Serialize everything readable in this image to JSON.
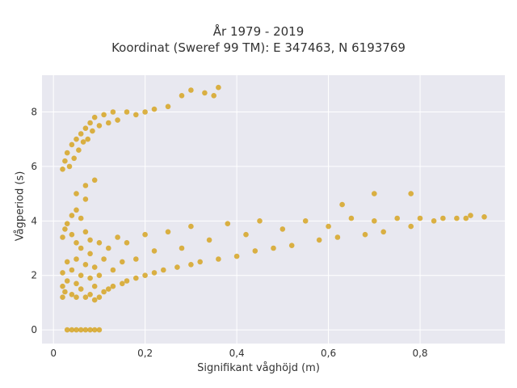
{
  "chart_data": {
    "type": "scatter",
    "title": "År 1979 - 2019",
    "subtitle": "Koordinat (Sweref 99 TM): E 347463, N 6193769",
    "xlabel": "Signifikant våghöjd (m)",
    "ylabel": "Vågperiod (s)",
    "xlim": [
      -0.025,
      0.985
    ],
    "ylim": [
      -0.5,
      9.35
    ],
    "x_ticks": [
      0,
      0.2,
      0.4,
      0.6,
      0.8
    ],
    "x_tick_labels": [
      "0",
      "0,2",
      "0,4",
      "0,6",
      "0,8"
    ],
    "y_ticks": [
      0,
      2,
      4,
      6,
      8
    ],
    "y_tick_labels": [
      "0",
      "2",
      "4",
      "6",
      "8"
    ],
    "grid": true,
    "plot_background": "#e8e8f0",
    "marker_color": "#d4a017",
    "series": [
      {
        "points": [
          [
            0.03,
            0
          ],
          [
            0.04,
            0
          ],
          [
            0.05,
            0
          ],
          [
            0.06,
            0
          ],
          [
            0.07,
            0
          ],
          [
            0.08,
            0
          ],
          [
            0.09,
            0
          ],
          [
            0.1,
            0
          ],
          [
            0.02,
            1.2
          ],
          [
            0.02,
            1.6
          ],
          [
            0.02,
            2.1
          ],
          [
            0.025,
            1.4
          ],
          [
            0.03,
            1.8
          ],
          [
            0.03,
            2.5
          ],
          [
            0.04,
            1.3
          ],
          [
            0.04,
            2.2
          ],
          [
            0.05,
            1.2
          ],
          [
            0.05,
            1.7
          ],
          [
            0.05,
            2.6
          ],
          [
            0.06,
            1.5
          ],
          [
            0.06,
            2.0
          ],
          [
            0.06,
            3.0
          ],
          [
            0.07,
            1.2
          ],
          [
            0.07,
            2.4
          ],
          [
            0.08,
            1.3
          ],
          [
            0.08,
            1.9
          ],
          [
            0.08,
            2.8
          ],
          [
            0.09,
            1.1
          ],
          [
            0.09,
            1.6
          ],
          [
            0.09,
            2.3
          ],
          [
            0.1,
            1.2
          ],
          [
            0.1,
            3.2
          ],
          [
            0.1,
            2.0
          ],
          [
            0.11,
            1.4
          ],
          [
            0.11,
            2.6
          ],
          [
            0.12,
            1.5
          ],
          [
            0.12,
            3.0
          ],
          [
            0.13,
            1.6
          ],
          [
            0.13,
            2.2
          ],
          [
            0.14,
            3.4
          ],
          [
            0.15,
            1.7
          ],
          [
            0.15,
            2.5
          ],
          [
            0.16,
            1.8
          ],
          [
            0.16,
            3.2
          ],
          [
            0.18,
            1.9
          ],
          [
            0.18,
            2.6
          ],
          [
            0.2,
            2.0
          ],
          [
            0.2,
            3.5
          ],
          [
            0.22,
            2.1
          ],
          [
            0.22,
            2.9
          ],
          [
            0.24,
            2.2
          ],
          [
            0.25,
            3.6
          ],
          [
            0.27,
            2.3
          ],
          [
            0.28,
            3.0
          ],
          [
            0.3,
            2.4
          ],
          [
            0.3,
            3.8
          ],
          [
            0.32,
            2.5
          ],
          [
            0.34,
            3.3
          ],
          [
            0.36,
            2.6
          ],
          [
            0.38,
            3.9
          ],
          [
            0.4,
            2.7
          ],
          [
            0.42,
            3.5
          ],
          [
            0.44,
            2.9
          ],
          [
            0.45,
            4.0
          ],
          [
            0.48,
            3.0
          ],
          [
            0.5,
            3.7
          ],
          [
            0.52,
            3.1
          ],
          [
            0.55,
            4.0
          ],
          [
            0.58,
            3.3
          ],
          [
            0.6,
            3.8
          ],
          [
            0.62,
            3.4
          ],
          [
            0.65,
            4.1
          ],
          [
            0.68,
            3.5
          ],
          [
            0.7,
            4.0
          ],
          [
            0.72,
            3.6
          ],
          [
            0.75,
            4.1
          ],
          [
            0.78,
            3.8
          ],
          [
            0.8,
            4.1
          ],
          [
            0.85,
            4.1
          ],
          [
            0.9,
            4.1
          ],
          [
            0.94,
            4.15
          ],
          [
            0.91,
            4.2
          ],
          [
            0.88,
            4.1
          ],
          [
            0.83,
            4.0
          ],
          [
            0.7,
            5.0
          ],
          [
            0.78,
            5.0
          ],
          [
            0.63,
            4.6
          ],
          [
            0.02,
            3.4
          ],
          [
            0.025,
            3.7
          ],
          [
            0.03,
            3.9
          ],
          [
            0.04,
            3.5
          ],
          [
            0.04,
            4.2
          ],
          [
            0.05,
            4.4
          ],
          [
            0.06,
            4.1
          ],
          [
            0.07,
            3.6
          ],
          [
            0.08,
            3.3
          ],
          [
            0.05,
            3.2
          ],
          [
            0.07,
            5.3
          ],
          [
            0.05,
            5.0
          ],
          [
            0.09,
            5.5
          ],
          [
            0.07,
            4.8
          ],
          [
            0.02,
            5.9
          ],
          [
            0.025,
            6.2
          ],
          [
            0.03,
            6.5
          ],
          [
            0.035,
            6.0
          ],
          [
            0.04,
            6.8
          ],
          [
            0.045,
            6.3
          ],
          [
            0.05,
            7.0
          ],
          [
            0.055,
            6.6
          ],
          [
            0.06,
            7.2
          ],
          [
            0.065,
            6.9
          ],
          [
            0.07,
            7.4
          ],
          [
            0.075,
            7.0
          ],
          [
            0.08,
            7.6
          ],
          [
            0.085,
            7.3
          ],
          [
            0.09,
            7.8
          ],
          [
            0.1,
            7.5
          ],
          [
            0.11,
            7.9
          ],
          [
            0.12,
            7.6
          ],
          [
            0.13,
            8.0
          ],
          [
            0.14,
            7.7
          ],
          [
            0.16,
            8.0
          ],
          [
            0.18,
            7.9
          ],
          [
            0.2,
            8.0
          ],
          [
            0.22,
            8.1
          ],
          [
            0.25,
            8.2
          ],
          [
            0.28,
            8.6
          ],
          [
            0.3,
            8.8
          ],
          [
            0.33,
            8.7
          ],
          [
            0.36,
            8.9
          ],
          [
            0.35,
            8.6
          ]
        ]
      }
    ]
  }
}
